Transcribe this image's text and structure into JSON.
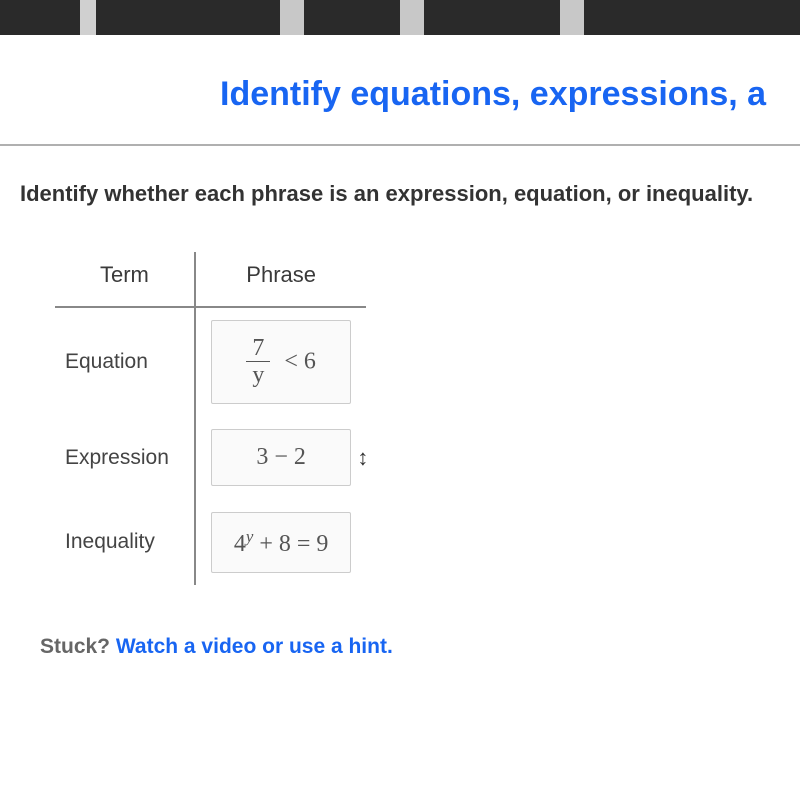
{
  "page": {
    "title": "Identify equations, expressions, a",
    "instruction": "Identify whether each phrase is an expression, equation, or inequality."
  },
  "table": {
    "headers": {
      "term": "Term",
      "phrase": "Phrase"
    },
    "rows": [
      {
        "term": "Equation",
        "phrase_type": "fraction_lt",
        "numerator": "7",
        "denominator": "y",
        "rhs": "< 6"
      },
      {
        "term": "Expression",
        "phrase_type": "plain",
        "text": "3 − 2",
        "show_move_icon": true
      },
      {
        "term": "Inequality",
        "phrase_type": "power_eq",
        "base": "4",
        "exp": "y",
        "rest": " + 8 = 9"
      }
    ]
  },
  "footer": {
    "stuck": "Stuck? ",
    "link": "Watch a video or use a hint."
  },
  "icons": {
    "move": "↕"
  },
  "colors": {
    "title": "#1865f2",
    "link": "#1865f2",
    "border": "#888888",
    "text": "#333333"
  }
}
